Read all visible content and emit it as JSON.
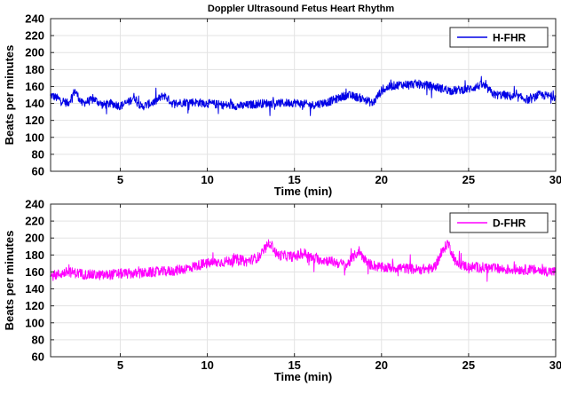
{
  "title": "Doppler Ultrasound Fetus Heart Rhythm",
  "chart_data": [
    {
      "type": "line",
      "title": "Doppler Ultrasound Fetus Heart Rhythm",
      "xlabel": "Time (min)",
      "ylabel": "Beats per minutes",
      "xlim": [
        1,
        30
      ],
      "ylim": [
        60,
        240
      ],
      "xticks": [
        5,
        10,
        15,
        20,
        25,
        30
      ],
      "yticks": [
        60,
        80,
        100,
        120,
        140,
        160,
        180,
        200,
        220,
        240
      ],
      "grid": true,
      "legend_position": "top-right",
      "series": [
        {
          "name": "H-FHR",
          "color": "#0000e6",
          "x": [
            1.0,
            1.5,
            2.0,
            2.4,
            2.8,
            3.5,
            4.0,
            4.5,
            5.0,
            5.5,
            5.8,
            6.2,
            7.0,
            7.5,
            8.0,
            9.0,
            10.0,
            11.0,
            12.0,
            13.0,
            14.0,
            15.0,
            16.0,
            17.0,
            18.0,
            18.5,
            19.0,
            19.5,
            20.0,
            20.5,
            21.0,
            22.0,
            23.0,
            24.0,
            25.0,
            25.8,
            26.5,
            27.0,
            27.5,
            28.0,
            28.5,
            29.0,
            29.5,
            30.0
          ],
          "y": [
            150,
            145,
            140,
            155,
            140,
            145,
            138,
            140,
            137,
            142,
            148,
            136,
            142,
            150,
            140,
            142,
            140,
            138,
            137,
            140,
            140,
            141,
            138,
            142,
            150,
            148,
            145,
            140,
            155,
            160,
            162,
            163,
            160,
            155,
            157,
            162,
            150,
            150,
            148,
            147,
            144,
            150,
            149,
            148
          ]
        },
        {
          "name": "D-FHR",
          "color": "#ff00ff",
          "x": [
            1.0,
            2.0,
            3.0,
            4.0,
            5.0,
            6.0,
            7.0,
            8.0,
            9.0,
            9.5,
            10.0,
            11.0,
            11.8,
            12.2,
            13.0,
            13.6,
            14.0,
            15.0,
            15.6,
            16.0,
            17.0,
            18.0,
            18.7,
            19.2,
            20.0,
            21.0,
            22.0,
            23.0,
            23.8,
            24.3,
            25.0,
            26.0,
            27.0,
            28.0,
            29.0,
            30.0
          ],
          "y": [
            155,
            160,
            157,
            156,
            158,
            158,
            160,
            161,
            165,
            168,
            170,
            172,
            175,
            172,
            178,
            195,
            180,
            178,
            182,
            176,
            173,
            168,
            185,
            170,
            165,
            165,
            163,
            164,
            195,
            170,
            166,
            165,
            163,
            163,
            162,
            160
          ]
        }
      ]
    }
  ]
}
